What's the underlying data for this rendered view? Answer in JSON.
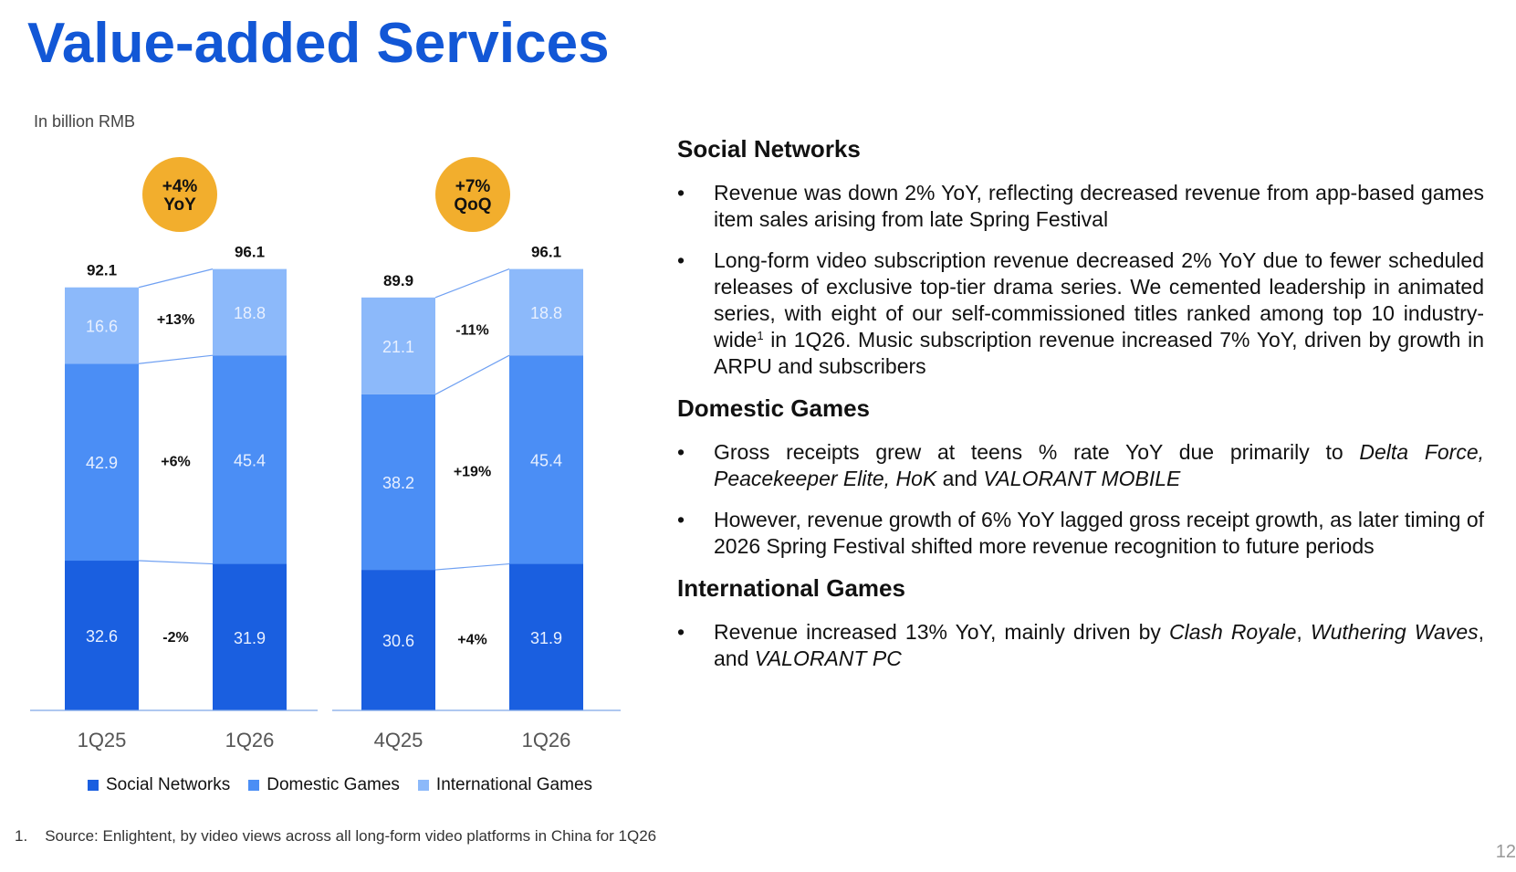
{
  "title": "Value-added Services",
  "unit_label": "In billion RMB",
  "colors": {
    "title": "#1257d6",
    "social_networks": "#1a5fe0",
    "domestic_games": "#4b8ef5",
    "international_games": "#8cb9fa",
    "badge": "#f2ae2d"
  },
  "chart_data": [
    {
      "type": "bar",
      "stacked": true,
      "badge": [
        "+4%",
        "YoY"
      ],
      "categories": [
        "1Q25",
        "1Q26"
      ],
      "series": [
        {
          "name": "Social Networks",
          "values": [
            32.6,
            31.9
          ]
        },
        {
          "name": "Domestic Games",
          "values": [
            42.9,
            45.4
          ]
        },
        {
          "name": "International Games",
          "values": [
            16.6,
            18.8
          ]
        }
      ],
      "totals": [
        92.1,
        96.1
      ],
      "changes": [
        "-2%",
        "+6%",
        "+13%"
      ]
    },
    {
      "type": "bar",
      "stacked": true,
      "badge": [
        "+7%",
        "QoQ"
      ],
      "categories": [
        "4Q25",
        "1Q26"
      ],
      "series": [
        {
          "name": "Social Networks",
          "values": [
            30.6,
            31.9
          ]
        },
        {
          "name": "Domestic Games",
          "values": [
            38.2,
            45.4
          ]
        },
        {
          "name": "International Games",
          "values": [
            21.1,
            18.8
          ]
        }
      ],
      "totals": [
        89.9,
        96.1
      ],
      "changes": [
        "+4%",
        "+19%",
        "-11%"
      ]
    }
  ],
  "legend": [
    "Social Networks",
    "Domestic Games",
    "International Games"
  ],
  "sections": [
    {
      "title": "Social Networks",
      "bullets": [
        [
          {
            "t": "Revenue was down 2% YoY, reflecting decreased revenue from app-based games item sales arising from late Spring Festival"
          }
        ],
        [
          {
            "t": "Long-form video subscription revenue decreased 2% YoY due to fewer scheduled releases of exclusive top-tier drama series. We cemented leadership in animated series, with eight of our self-commissioned titles ranked among top 10 industry-wide"
          },
          {
            "t": "1",
            "sup": true
          },
          {
            "t": " in 1Q26. Music subscription revenue increased 7% YoY, driven by growth in ARPU and subscribers"
          }
        ]
      ]
    },
    {
      "title": "Domestic Games",
      "bullets": [
        [
          {
            "t": "Gross receipts grew at teens % rate YoY due primarily to "
          },
          {
            "t": "Delta Force, Peacekeeper Elite, HoK",
            "i": true
          },
          {
            "t": " and "
          },
          {
            "t": "VALORANT MOBILE",
            "i": true
          }
        ],
        [
          {
            "t": "However, revenue growth of 6% YoY lagged gross receipt growth, as later timing of 2026 Spring Festival shifted more revenue recognition to future periods"
          }
        ]
      ]
    },
    {
      "title": "International Games",
      "bullets": [
        [
          {
            "t": "Revenue increased 13% YoY, mainly driven by "
          },
          {
            "t": "Clash Royale",
            "i": true
          },
          {
            "t": ", "
          },
          {
            "t": "Wuthering Waves",
            "i": true
          },
          {
            "t": ", and "
          },
          {
            "t": "VALORANT PC",
            "i": true
          }
        ]
      ]
    }
  ],
  "footnote": {
    "number": "1.",
    "text": "Source: Enlightent, by video views across all long-form video platforms in China for 1Q26"
  },
  "page_number": "12"
}
